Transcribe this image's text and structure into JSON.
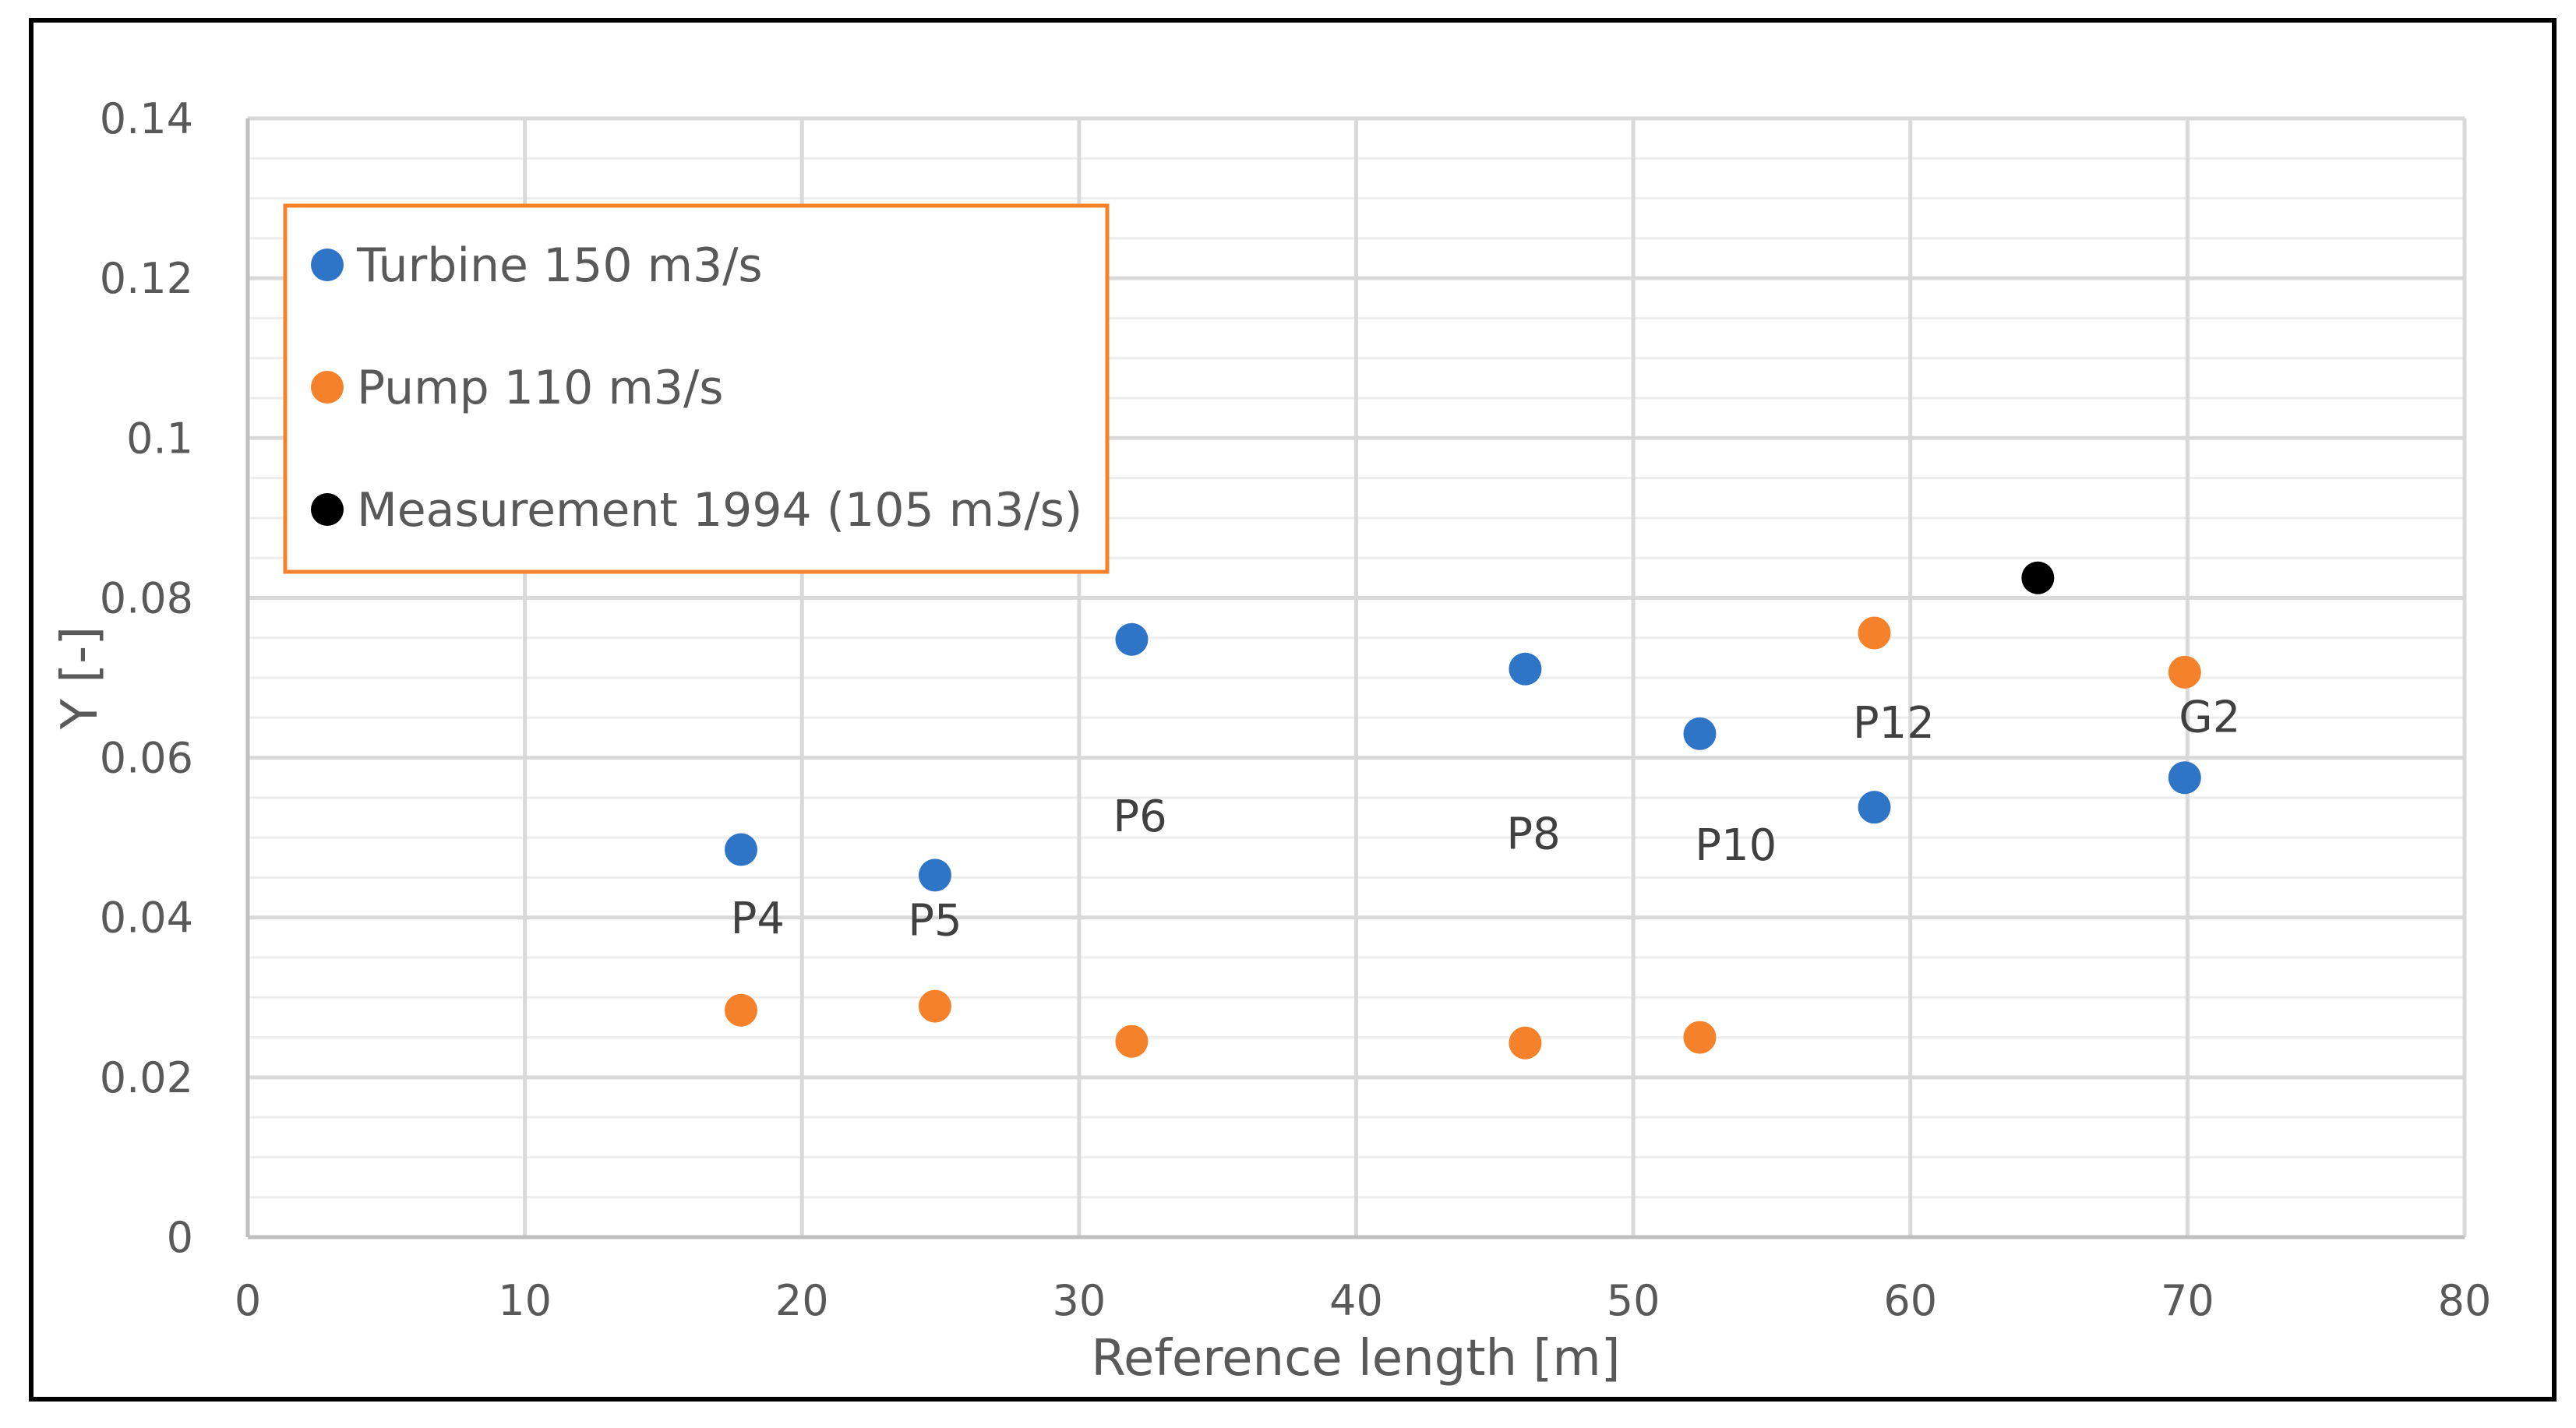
{
  "chart_data": {
    "type": "scatter",
    "title": "",
    "xlabel": "Reference length [m]",
    "ylabel": "Y [-]",
    "xlim": [
      0,
      80
    ],
    "ylim": [
      0,
      0.14
    ],
    "x_ticks": [
      0,
      10,
      20,
      30,
      40,
      50,
      60,
      70,
      80
    ],
    "x_tick_labels": [
      "0",
      "10",
      "20",
      "30",
      "40",
      "50",
      "60",
      "70",
      "80"
    ],
    "y_ticks": [
      0,
      0.02,
      0.04,
      0.06,
      0.08,
      0.1,
      0.12,
      0.14
    ],
    "y_tick_labels": [
      "0",
      "0.02",
      "0.04",
      "0.06",
      "0.08",
      "0.1",
      "0.12",
      "0.14"
    ],
    "y_minor_step": 0.005,
    "grid": true,
    "legend_position": "top-left",
    "series": [
      {
        "name": "Turbine 150 m3/s",
        "color": "#2E75C8",
        "points": [
          {
            "x": 17.8,
            "y": 0.0485
          },
          {
            "x": 24.8,
            "y": 0.0453
          },
          {
            "x": 31.9,
            "y": 0.0748
          },
          {
            "x": 46.1,
            "y": 0.0711
          },
          {
            "x": 52.4,
            "y": 0.063
          },
          {
            "x": 58.7,
            "y": 0.0538
          },
          {
            "x": 69.9,
            "y": 0.0575
          }
        ]
      },
      {
        "name": "Pump 110 m3/s",
        "color": "#F5822B",
        "points": [
          {
            "x": 17.8,
            "y": 0.0284
          },
          {
            "x": 24.8,
            "y": 0.0289
          },
          {
            "x": 31.9,
            "y": 0.0245
          },
          {
            "x": 46.1,
            "y": 0.0243
          },
          {
            "x": 52.4,
            "y": 0.025
          },
          {
            "x": 58.7,
            "y": 0.0756
          },
          {
            "x": 69.9,
            "y": 0.0707
          }
        ]
      },
      {
        "name": "Measurement 1994 (105 m3/s)",
        "color": "#000000",
        "points": [
          {
            "x": 64.6,
            "y": 0.0825
          }
        ]
      }
    ],
    "annotations": [
      {
        "text": "P4",
        "x": 18.4,
        "y": 0.038
      },
      {
        "text": "P5",
        "x": 24.8,
        "y": 0.0378
      },
      {
        "text": "P6",
        "x": 32.2,
        "y": 0.0508
      },
      {
        "text": "P8",
        "x": 46.4,
        "y": 0.0486
      },
      {
        "text": "P10",
        "x": 53.7,
        "y": 0.0472
      },
      {
        "text": "P12",
        "x": 59.4,
        "y": 0.0625
      },
      {
        "text": "G2",
        "x": 70.8,
        "y": 0.0632
      }
    ]
  }
}
